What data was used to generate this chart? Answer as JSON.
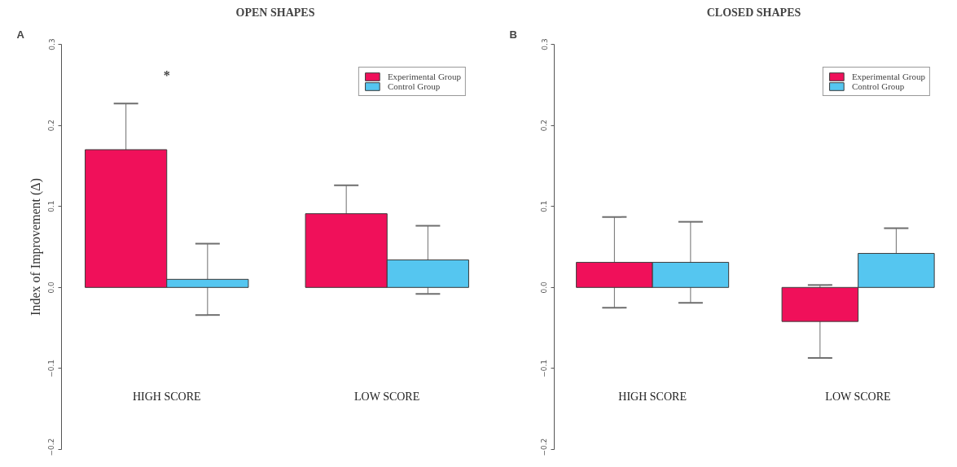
{
  "chart_data": [
    {
      "type": "bar",
      "title": "OPEN SHAPES",
      "ylabel": "Index of Improvement (Δ)",
      "categories": [
        "HIGH SCORE",
        "LOW SCORE"
      ],
      "series": [
        {
          "name": "Experimental Group",
          "color": "#f0105a",
          "values": [
            0.17,
            0.091
          ],
          "errors": [
            0.057,
            0.035
          ]
        },
        {
          "name": "Control Group",
          "color": "#55c6f0",
          "values": [
            0.01,
            0.034
          ],
          "errors": [
            0.044,
            0.042
          ]
        }
      ],
      "ylim": [
        -0.2,
        0.3
      ],
      "yticks": [
        -0.2,
        -0.1,
        {
          "value": 0,
          "label": "0.0"
        },
        0.1,
        0.2,
        0.3
      ],
      "grid": false,
      "legend": "top right",
      "annotations": [
        "A",
        "*"
      ]
    },
    {
      "type": "bar",
      "title": "CLOSED SHAPES",
      "categories": [
        "HIGH SCORE",
        "LOW SCORE"
      ],
      "series": [
        {
          "name": "Experimental Group",
          "color": "#f0105a",
          "values": [
            0.031,
            -0.042
          ],
          "errors": [
            0.056,
            0.045
          ]
        },
        {
          "name": "Control Group",
          "color": "#55c6f0",
          "values": [
            0.031,
            0.042
          ],
          "errors": [
            0.05,
            0.031
          ]
        }
      ],
      "ylim": [
        -0.2,
        0.3
      ],
      "yticks": [
        -0.2,
        -0.1,
        {
          "value": 0,
          "label": "0.0"
        },
        0.1,
        0.2,
        0.3
      ],
      "grid": false,
      "legend": "top right",
      "annotations": [
        "B"
      ]
    }
  ]
}
